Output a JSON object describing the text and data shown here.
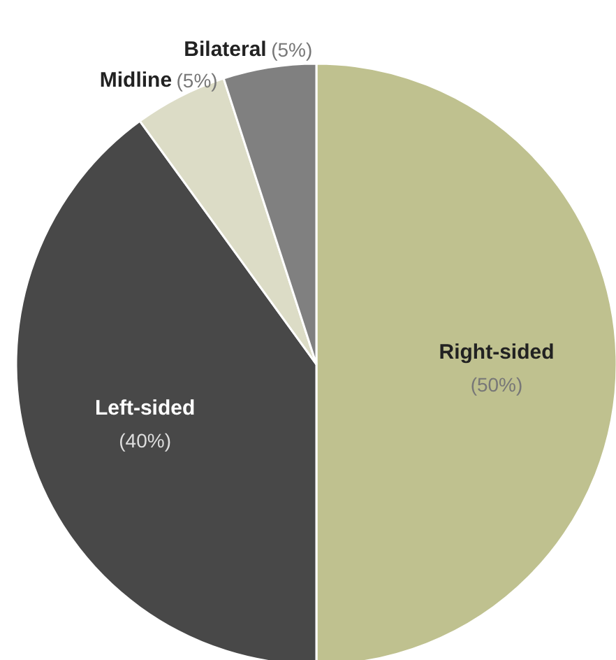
{
  "chart_data": {
    "type": "pie",
    "categories": [
      "Right-sided",
      "Left-sided",
      "Midline",
      "Bilateral"
    ],
    "values": [
      50,
      40,
      5,
      5
    ],
    "colors": [
      "#bfc18f",
      "#484848",
      "#dcdcc6",
      "#808080"
    ],
    "value_labels": [
      "(50%)",
      "(40%)",
      "(5%)",
      "(5%)"
    ]
  }
}
